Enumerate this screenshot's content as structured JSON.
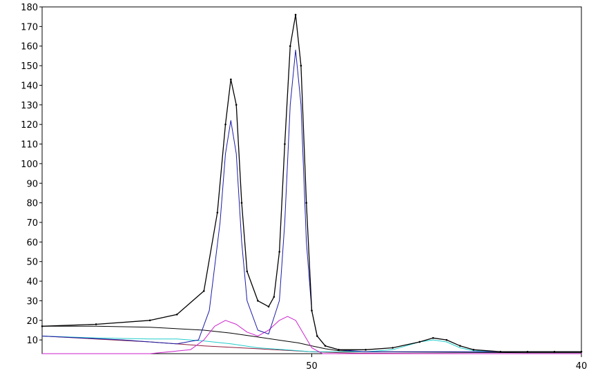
{
  "chart_data": {
    "type": "line",
    "title": "",
    "xlabel": "",
    "ylabel": "",
    "xlim": [
      60,
      40
    ],
    "ylim": [
      3,
      180
    ],
    "grid": false,
    "x_ticks": [
      "50",
      "40"
    ],
    "x_tick_values": [
      50,
      40
    ],
    "y_ticks": [
      10,
      20,
      30,
      40,
      50,
      60,
      70,
      80,
      90,
      100,
      110,
      120,
      130,
      140,
      150,
      160,
      170,
      180
    ],
    "colors": {
      "envelope": "#000000",
      "observed": "#000000",
      "peak_blue": "#1a1aa6",
      "peak_magenta": "#cc22cc",
      "peak_cyan": "#22cccc",
      "background_black": "#000000",
      "background_maroon": "#8b1a3a"
    },
    "series": [
      {
        "style": "points",
        "color": "#000000",
        "x": [
          60,
          58,
          56,
          55,
          54,
          53.5,
          53.2,
          53,
          52.8,
          52.6,
          52.4,
          52,
          51.6,
          51.4,
          51.2,
          51,
          50.8,
          50.6,
          50.4,
          50.2,
          50,
          49.8,
          49.5,
          49,
          48,
          47,
          46,
          45.5,
          45,
          44.5,
          44,
          43,
          42,
          41,
          40
        ],
        "y": [
          17,
          18,
          20,
          23,
          35,
          75,
          120,
          143,
          130,
          80,
          45,
          30,
          27,
          32,
          55,
          110,
          160,
          176,
          150,
          80,
          25,
          12,
          7,
          5,
          5,
          6,
          9,
          11,
          10,
          7,
          5,
          4,
          4,
          4,
          4
        ]
      },
      {
        "style": "envelope",
        "color": "#000000",
        "x": [
          60,
          58,
          56,
          55,
          54,
          53.5,
          53.2,
          53,
          52.8,
          52.6,
          52.4,
          52,
          51.6,
          51.4,
          51.2,
          51,
          50.8,
          50.6,
          50.4,
          50.2,
          50,
          49.8,
          49.5,
          49,
          48,
          47,
          46,
          45.5,
          45,
          44.5,
          44,
          43,
          42,
          41,
          40
        ],
        "y": [
          17,
          18,
          20,
          23,
          35,
          75,
          120,
          143,
          130,
          80,
          45,
          30,
          27,
          32,
          55,
          110,
          160,
          176,
          150,
          80,
          25,
          12,
          7,
          5,
          5,
          6,
          9,
          11,
          10,
          7,
          5,
          4,
          4,
          4,
          4
        ]
      },
      {
        "style": "line",
        "color": "#1a1aa6",
        "x": [
          60,
          57,
          55,
          54.2,
          53.8,
          53.4,
          53.2,
          53,
          52.8,
          52.6,
          52.4,
          52,
          51.6,
          51.2,
          51,
          50.8,
          50.6,
          50.4,
          50.2,
          50,
          49.8,
          49.5,
          49,
          48,
          44,
          42,
          40
        ],
        "y": [
          12,
          10,
          8,
          10,
          25,
          70,
          105,
          122,
          105,
          60,
          30,
          15,
          13,
          30,
          70,
          130,
          158,
          130,
          60,
          25,
          12,
          7,
          5,
          4,
          4,
          4,
          4
        ]
      },
      {
        "style": "line",
        "color": "#cc22cc",
        "x": [
          60,
          56,
          54.5,
          54,
          53.6,
          53.2,
          52.8,
          52.4,
          52,
          51.6,
          51.2,
          50.9,
          50.6,
          50.3,
          50,
          49.6,
          49,
          48,
          40
        ],
        "y": [
          3,
          3,
          5,
          10,
          17,
          20,
          18,
          14,
          12,
          15,
          20,
          22,
          20,
          13,
          6,
          3,
          3,
          3,
          3
        ]
      },
      {
        "style": "line",
        "color": "#22cccc",
        "x": [
          60,
          58,
          56,
          55,
          54,
          53,
          52,
          51,
          50,
          49,
          48,
          47,
          46.5,
          46,
          45.5,
          45,
          44.5,
          44,
          43,
          42,
          41,
          40
        ],
        "y": [
          12,
          11,
          10.5,
          10.5,
          9.5,
          8,
          6,
          5,
          4,
          4,
          4,
          5,
          7,
          9,
          10,
          9,
          6,
          4.5,
          4,
          4,
          4,
          4
        ]
      },
      {
        "style": "line",
        "color": "#000000",
        "x": [
          60,
          58,
          56,
          54,
          53,
          52,
          51,
          50.5,
          50,
          49.5,
          49,
          48,
          46,
          44,
          42,
          40
        ],
        "y": [
          17,
          17,
          16.5,
          15,
          13.5,
          11.5,
          9.5,
          8.5,
          7,
          5.5,
          4.5,
          4,
          3.8,
          3.6,
          3.5,
          3.5
        ]
      },
      {
        "style": "line",
        "color": "#8b1a3a",
        "x": [
          60,
          56,
          54,
          52,
          50,
          49,
          48,
          46,
          44,
          42,
          40
        ],
        "y": [
          12,
          9,
          7,
          5.5,
          4,
          3.5,
          3.2,
          3.1,
          3.0,
          3.0,
          3.0
        ]
      }
    ]
  }
}
